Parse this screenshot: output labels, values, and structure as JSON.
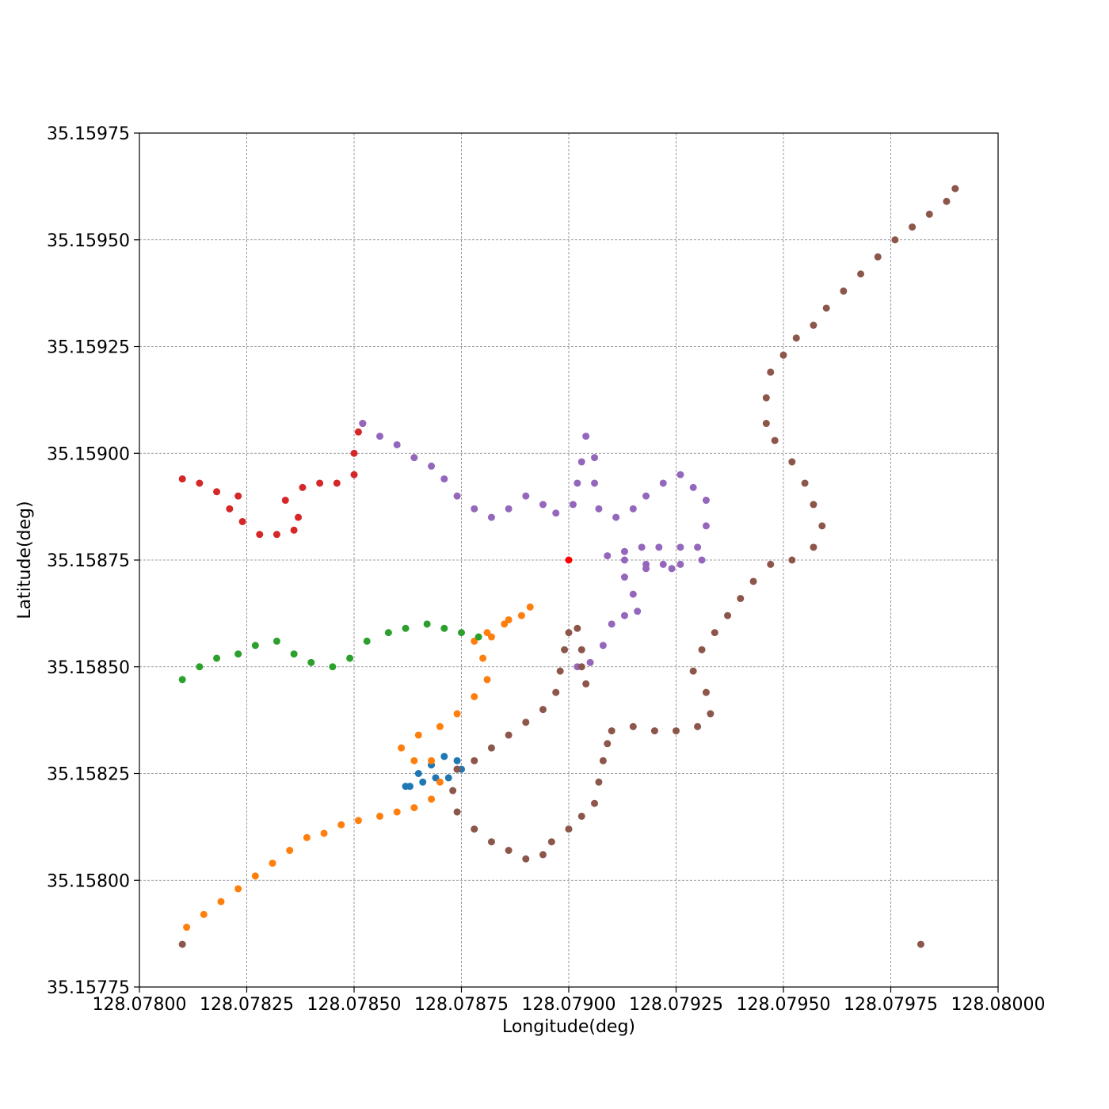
{
  "chart_data": {
    "type": "scatter",
    "title": "",
    "xlabel": "Longitude(deg)",
    "ylabel": "Latitude(deg)",
    "xlim": [
      128.078,
      128.08
    ],
    "ylim": [
      35.15775,
      35.15975
    ],
    "grid": true,
    "legend": "none",
    "xticks": [
      "128.07800",
      "128.07825",
      "128.07850",
      "128.07875",
      "128.07900",
      "128.07925",
      "128.07950",
      "128.07975",
      "128.08000"
    ],
    "yticks": [
      "35.15775",
      "35.15800",
      "35.15825",
      "35.15850",
      "35.15875",
      "35.15900",
      "35.15925",
      "35.15950",
      "35.15975"
    ],
    "series": [
      {
        "color": "#1f77b4",
        "points": [
          [
            128.07862,
            35.15822
          ],
          [
            128.07865,
            35.15825
          ],
          [
            128.07868,
            35.15827
          ],
          [
            128.07871,
            35.15829
          ],
          [
            128.07874,
            35.15828
          ],
          [
            128.07875,
            35.15826
          ],
          [
            128.07872,
            35.15824
          ],
          [
            128.07869,
            35.15824
          ],
          [
            128.07866,
            35.15823
          ],
          [
            128.07863,
            35.15822
          ]
        ]
      },
      {
        "color": "#ff7f0e",
        "points": [
          [
            128.07811,
            35.15789
          ],
          [
            128.07815,
            35.15792
          ],
          [
            128.07819,
            35.15795
          ],
          [
            128.07823,
            35.15798
          ],
          [
            128.07827,
            35.15801
          ],
          [
            128.07831,
            35.15804
          ],
          [
            128.07835,
            35.15807
          ],
          [
            128.07839,
            35.1581
          ],
          [
            128.07843,
            35.15811
          ],
          [
            128.07847,
            35.15813
          ],
          [
            128.07851,
            35.15814
          ],
          [
            128.07856,
            35.15815
          ],
          [
            128.0786,
            35.15816
          ],
          [
            128.07864,
            35.15817
          ],
          [
            128.07868,
            35.15819
          ],
          [
            128.0787,
            35.15823
          ],
          [
            128.07868,
            35.15828
          ],
          [
            128.07864,
            35.15828
          ],
          [
            128.07861,
            35.15831
          ],
          [
            128.07865,
            35.15834
          ],
          [
            128.0787,
            35.15836
          ],
          [
            128.07874,
            35.15839
          ],
          [
            128.07878,
            35.15843
          ],
          [
            128.07881,
            35.15847
          ],
          [
            128.0788,
            35.15852
          ],
          [
            128.07878,
            35.15856
          ],
          [
            128.07881,
            35.15858
          ],
          [
            128.07885,
            35.1586
          ],
          [
            128.07889,
            35.15862
          ],
          [
            128.07891,
            35.15864
          ],
          [
            128.07886,
            35.15861
          ],
          [
            128.07882,
            35.15857
          ]
        ]
      },
      {
        "color": "#2ca02c",
        "points": [
          [
            128.0781,
            35.15847
          ],
          [
            128.07814,
            35.1585
          ],
          [
            128.07818,
            35.15852
          ],
          [
            128.07823,
            35.15853
          ],
          [
            128.07827,
            35.15855
          ],
          [
            128.07832,
            35.15856
          ],
          [
            128.07836,
            35.15853
          ],
          [
            128.0784,
            35.15851
          ],
          [
            128.07845,
            35.1585
          ],
          [
            128.07849,
            35.15852
          ],
          [
            128.07853,
            35.15856
          ],
          [
            128.07858,
            35.15858
          ],
          [
            128.07862,
            35.15859
          ],
          [
            128.07867,
            35.1586
          ],
          [
            128.07871,
            35.15859
          ],
          [
            128.07875,
            35.15858
          ],
          [
            128.07879,
            35.15857
          ]
        ]
      },
      {
        "color": "#d62728",
        "points": [
          [
            128.0781,
            35.15894
          ],
          [
            128.07814,
            35.15893
          ],
          [
            128.07818,
            35.15891
          ],
          [
            128.07823,
            35.1589
          ],
          [
            128.07821,
            35.15887
          ],
          [
            128.07824,
            35.15884
          ],
          [
            128.07828,
            35.15881
          ],
          [
            128.07832,
            35.15881
          ],
          [
            128.07836,
            35.15882
          ],
          [
            128.07837,
            35.15885
          ],
          [
            128.07834,
            35.15889
          ],
          [
            128.07838,
            35.15892
          ],
          [
            128.07842,
            35.15893
          ],
          [
            128.07846,
            35.15893
          ],
          [
            128.0785,
            35.15895
          ],
          [
            128.0785,
            35.159
          ],
          [
            128.07851,
            35.15905
          ],
          [
            128.07852,
            35.15907
          ]
        ]
      },
      {
        "color": "#9467bd",
        "points": [
          [
            128.07852,
            35.15907
          ],
          [
            128.07856,
            35.15904
          ],
          [
            128.0786,
            35.15902
          ],
          [
            128.07864,
            35.15899
          ],
          [
            128.07868,
            35.15897
          ],
          [
            128.07871,
            35.15894
          ],
          [
            128.07874,
            35.1589
          ],
          [
            128.07878,
            35.15887
          ],
          [
            128.07882,
            35.15885
          ],
          [
            128.07886,
            35.15887
          ],
          [
            128.0789,
            35.1589
          ],
          [
            128.07894,
            35.15888
          ],
          [
            128.07897,
            35.15886
          ],
          [
            128.07901,
            35.15888
          ],
          [
            128.07902,
            35.15893
          ],
          [
            128.07903,
            35.15898
          ],
          [
            128.07904,
            35.15904
          ],
          [
            128.07906,
            35.15899
          ],
          [
            128.07906,
            35.15893
          ],
          [
            128.07907,
            35.15887
          ],
          [
            128.07911,
            35.15885
          ],
          [
            128.07915,
            35.15887
          ],
          [
            128.07918,
            35.1589
          ],
          [
            128.07922,
            35.15893
          ],
          [
            128.07926,
            35.15895
          ],
          [
            128.07929,
            35.15892
          ],
          [
            128.07932,
            35.15889
          ],
          [
            128.07932,
            35.15883
          ],
          [
            128.0793,
            35.15878
          ],
          [
            128.07926,
            35.15878
          ],
          [
            128.07921,
            35.15878
          ],
          [
            128.07917,
            35.15878
          ],
          [
            128.07913,
            35.15877
          ],
          [
            128.07909,
            35.15876
          ],
          [
            128.07913,
            35.15875
          ],
          [
            128.07918,
            35.15874
          ],
          [
            128.07922,
            35.15874
          ],
          [
            128.07926,
            35.15874
          ],
          [
            128.07931,
            35.15875
          ],
          [
            128.07924,
            35.15873
          ],
          [
            128.07918,
            35.15873
          ],
          [
            128.07913,
            35.15871
          ],
          [
            128.07915,
            35.15867
          ],
          [
            128.07916,
            35.15863
          ],
          [
            128.07913,
            35.15862
          ],
          [
            128.0791,
            35.1586
          ],
          [
            128.07908,
            35.15855
          ],
          [
            128.07905,
            35.15851
          ],
          [
            128.07902,
            35.1585
          ]
        ]
      },
      {
        "color": "#8c564b",
        "points": [
          [
            128.0781,
            35.15785
          ],
          [
            128.07982,
            35.15785
          ],
          [
            128.07874,
            35.15826
          ],
          [
            128.07873,
            35.15821
          ],
          [
            128.07874,
            35.15816
          ],
          [
            128.07878,
            35.15812
          ],
          [
            128.07882,
            35.15809
          ],
          [
            128.07886,
            35.15807
          ],
          [
            128.0789,
            35.15805
          ],
          [
            128.07894,
            35.15806
          ],
          [
            128.07896,
            35.15809
          ],
          [
            128.079,
            35.15812
          ],
          [
            128.07903,
            35.15815
          ],
          [
            128.07906,
            35.15818
          ],
          [
            128.07907,
            35.15823
          ],
          [
            128.07908,
            35.15828
          ],
          [
            128.07909,
            35.15832
          ],
          [
            128.0791,
            35.15835
          ],
          [
            128.07915,
            35.15836
          ],
          [
            128.0792,
            35.15835
          ],
          [
            128.07925,
            35.15835
          ],
          [
            128.0793,
            35.15836
          ],
          [
            128.07933,
            35.15839
          ],
          [
            128.07932,
            35.15844
          ],
          [
            128.07929,
            35.15849
          ],
          [
            128.07931,
            35.15854
          ],
          [
            128.07934,
            35.15858
          ],
          [
            128.07937,
            35.15862
          ],
          [
            128.0794,
            35.15866
          ],
          [
            128.07943,
            35.1587
          ],
          [
            128.07947,
            35.15874
          ],
          [
            128.07952,
            35.15875
          ],
          [
            128.07957,
            35.15878
          ],
          [
            128.07959,
            35.15883
          ],
          [
            128.07957,
            35.15888
          ],
          [
            128.07955,
            35.15893
          ],
          [
            128.07952,
            35.15898
          ],
          [
            128.07948,
            35.15903
          ],
          [
            128.07946,
            35.15907
          ],
          [
            128.07946,
            35.15913
          ],
          [
            128.07947,
            35.15919
          ],
          [
            128.0795,
            35.15923
          ],
          [
            128.07953,
            35.15927
          ],
          [
            128.07957,
            35.1593
          ],
          [
            128.0796,
            35.15934
          ],
          [
            128.07964,
            35.15938
          ],
          [
            128.07968,
            35.15942
          ],
          [
            128.07972,
            35.15946
          ],
          [
            128.07976,
            35.1595
          ],
          [
            128.0798,
            35.15953
          ],
          [
            128.07984,
            35.15956
          ],
          [
            128.07988,
            35.15959
          ],
          [
            128.0799,
            35.15962
          ],
          [
            128.07874,
            35.15826
          ],
          [
            128.07878,
            35.15828
          ],
          [
            128.07882,
            35.15831
          ],
          [
            128.07886,
            35.15834
          ],
          [
            128.0789,
            35.15837
          ],
          [
            128.07894,
            35.1584
          ],
          [
            128.07897,
            35.15844
          ],
          [
            128.07898,
            35.15849
          ],
          [
            128.07899,
            35.15854
          ],
          [
            128.079,
            35.15858
          ],
          [
            128.07902,
            35.15859
          ],
          [
            128.07903,
            35.15854
          ],
          [
            128.07903,
            35.1585
          ],
          [
            128.07904,
            35.15846
          ]
        ]
      },
      {
        "color": "#ff0000",
        "points": [
          [
            128.079,
            35.15875
          ]
        ]
      }
    ]
  }
}
